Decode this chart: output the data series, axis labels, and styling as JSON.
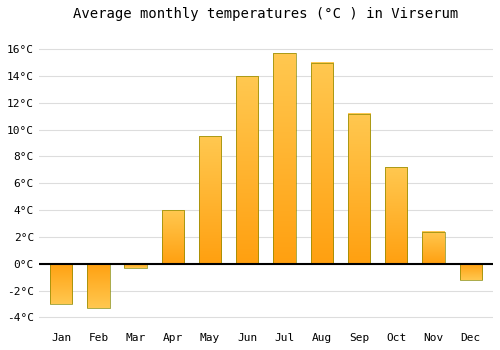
{
  "title": "Average monthly temperatures (°C ) in Virserum",
  "months": [
    "Jan",
    "Feb",
    "Mar",
    "Apr",
    "May",
    "Jun",
    "Jul",
    "Aug",
    "Sep",
    "Oct",
    "Nov",
    "Dec"
  ],
  "values": [
    -3.0,
    -3.3,
    -0.3,
    4.0,
    9.5,
    14.0,
    15.7,
    15.0,
    11.2,
    7.2,
    2.4,
    -1.2
  ],
  "bar_color_top": "#FFB833",
  "bar_color_bottom": "#FFA010",
  "bar_edge_color": "#888800",
  "ylim": [
    -4.8,
    17.5
  ],
  "yticks": [
    -4,
    -2,
    0,
    2,
    4,
    6,
    8,
    10,
    12,
    14,
    16
  ],
  "ytick_labels": [
    "-4°C",
    "-2°C",
    "0°C",
    "2°C",
    "4°C",
    "6°C",
    "8°C",
    "10°C",
    "12°C",
    "14°C",
    "16°C"
  ],
  "bg_color": "#FFFFFF",
  "plot_bg_color": "#FFFFFF",
  "grid_color": "#DDDDDD",
  "title_fontsize": 10,
  "tick_fontsize": 8,
  "font_family": "monospace",
  "bar_width": 0.6
}
